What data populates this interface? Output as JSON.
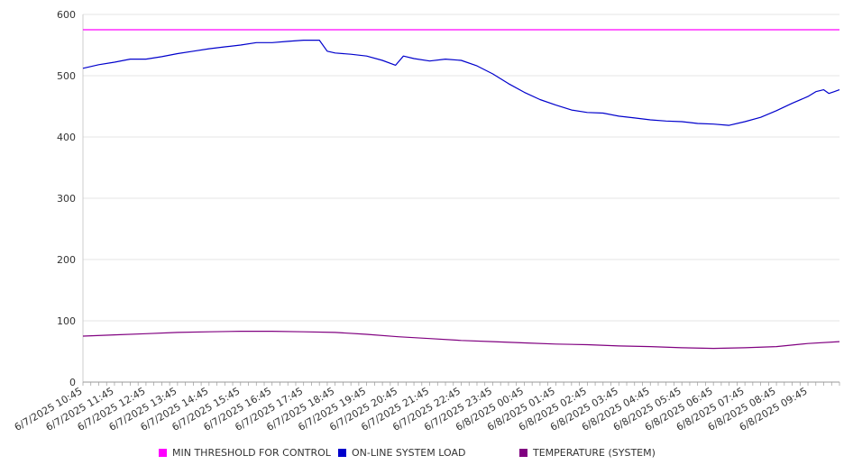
{
  "chart_data": {
    "type": "line",
    "title": "",
    "xlabel": "",
    "ylabel": "",
    "ylim": [
      0,
      600
    ],
    "yticks": [
      0,
      100,
      200,
      300,
      400,
      500,
      600
    ],
    "grid": "horizontal",
    "legend_position": "bottom",
    "x_labels": [
      "6/7/2025 10:45",
      "6/7/2025 11:45",
      "6/7/2025 12:45",
      "6/7/2025 13:45",
      "6/7/2025 14:45",
      "6/7/2025 15:45",
      "6/7/2025 16:45",
      "6/7/2025 17:45",
      "6/7/2025 18:45",
      "6/7/2025 19:45",
      "6/7/2025 20:45",
      "6/7/2025 21:45",
      "6/7/2025 22:45",
      "6/7/2025 23:45",
      "6/8/2025 00:45",
      "6/8/2025 01:45",
      "6/8/2025 02:45",
      "6/8/2025 03:45",
      "6/8/2025 04:45",
      "6/8/2025 05:45",
      "6/8/2025 06:45",
      "6/8/2025 07:45",
      "6/8/2025 08:45",
      "6/8/2025 09:45"
    ],
    "x_end": "6/8/2025 10:45",
    "series": [
      {
        "name": "MIN THRESHOLD FOR CONTROL",
        "color": "#ff00ff",
        "points": [
          [
            "6/7/2025 10:45",
            575
          ],
          [
            "6/8/2025 10:45",
            575
          ]
        ]
      },
      {
        "name": "ON-LINE SYSTEM LOAD",
        "color": "#0000cc",
        "points": [
          [
            "6/7/2025 10:45",
            512
          ],
          [
            "6/7/2025 11:15",
            518
          ],
          [
            "6/7/2025 11:45",
            522
          ],
          [
            "6/7/2025 12:15",
            527
          ],
          [
            "6/7/2025 12:45",
            527
          ],
          [
            "6/7/2025 13:15",
            531
          ],
          [
            "6/7/2025 13:45",
            536
          ],
          [
            "6/7/2025 14:15",
            540
          ],
          [
            "6/7/2025 14:45",
            544
          ],
          [
            "6/7/2025 15:15",
            547
          ],
          [
            "6/7/2025 15:45",
            550
          ],
          [
            "6/7/2025 16:15",
            554
          ],
          [
            "6/7/2025 16:45",
            554
          ],
          [
            "6/7/2025 17:15",
            556
          ],
          [
            "6/7/2025 17:45",
            558
          ],
          [
            "6/7/2025 18:15",
            558
          ],
          [
            "6/7/2025 18:30",
            540
          ],
          [
            "6/7/2025 18:45",
            537
          ],
          [
            "6/7/2025 19:15",
            535
          ],
          [
            "6/7/2025 19:45",
            532
          ],
          [
            "6/7/2025 20:15",
            525
          ],
          [
            "6/7/2025 20:40",
            517
          ],
          [
            "6/7/2025 20:55",
            532
          ],
          [
            "6/7/2025 21:15",
            528
          ],
          [
            "6/7/2025 21:45",
            524
          ],
          [
            "6/7/2025 22:15",
            527
          ],
          [
            "6/7/2025 22:45",
            525
          ],
          [
            "6/7/2025 23:15",
            516
          ],
          [
            "6/7/2025 23:45",
            503
          ],
          [
            "6/8/2025 00:15",
            487
          ],
          [
            "6/8/2025 00:45",
            473
          ],
          [
            "6/8/2025 01:15",
            461
          ],
          [
            "6/8/2025 01:45",
            452
          ],
          [
            "6/8/2025 02:15",
            444
          ],
          [
            "6/8/2025 02:45",
            440
          ],
          [
            "6/8/2025 03:15",
            439
          ],
          [
            "6/8/2025 03:45",
            434
          ],
          [
            "6/8/2025 04:15",
            431
          ],
          [
            "6/8/2025 04:45",
            428
          ],
          [
            "6/8/2025 05:15",
            426
          ],
          [
            "6/8/2025 05:45",
            425
          ],
          [
            "6/8/2025 06:15",
            422
          ],
          [
            "6/8/2025 06:45",
            421
          ],
          [
            "6/8/2025 07:15",
            419
          ],
          [
            "6/8/2025 07:45",
            425
          ],
          [
            "6/8/2025 08:15",
            432
          ],
          [
            "6/8/2025 08:45",
            443
          ],
          [
            "6/8/2025 09:15",
            455
          ],
          [
            "6/8/2025 09:45",
            466
          ],
          [
            "6/8/2025 10:00",
            474
          ],
          [
            "6/8/2025 10:15",
            477
          ],
          [
            "6/8/2025 10:25",
            471
          ],
          [
            "6/8/2025 10:35",
            474
          ],
          [
            "6/8/2025 10:45",
            477
          ]
        ]
      },
      {
        "name": "TEMPERATURE (SYSTEM)",
        "color": "#800080",
        "points": [
          [
            "6/7/2025 10:45",
            75
          ],
          [
            "6/7/2025 11:45",
            77
          ],
          [
            "6/7/2025 12:45",
            79
          ],
          [
            "6/7/2025 13:45",
            81
          ],
          [
            "6/7/2025 14:45",
            82
          ],
          [
            "6/7/2025 15:45",
            83
          ],
          [
            "6/7/2025 16:45",
            83
          ],
          [
            "6/7/2025 17:45",
            82
          ],
          [
            "6/7/2025 18:45",
            81
          ],
          [
            "6/7/2025 19:45",
            78
          ],
          [
            "6/7/2025 20:45",
            74
          ],
          [
            "6/7/2025 21:45",
            71
          ],
          [
            "6/7/2025 22:45",
            68
          ],
          [
            "6/7/2025 23:45",
            66
          ],
          [
            "6/8/2025 00:45",
            64
          ],
          [
            "6/8/2025 01:45",
            62
          ],
          [
            "6/8/2025 02:45",
            61
          ],
          [
            "6/8/2025 03:45",
            59
          ],
          [
            "6/8/2025 04:45",
            58
          ],
          [
            "6/8/2025 05:45",
            56
          ],
          [
            "6/8/2025 06:45",
            55
          ],
          [
            "6/8/2025 07:45",
            56
          ],
          [
            "6/8/2025 08:45",
            58
          ],
          [
            "6/8/2025 09:45",
            63
          ],
          [
            "6/8/2025 10:45",
            66
          ]
        ]
      }
    ]
  }
}
